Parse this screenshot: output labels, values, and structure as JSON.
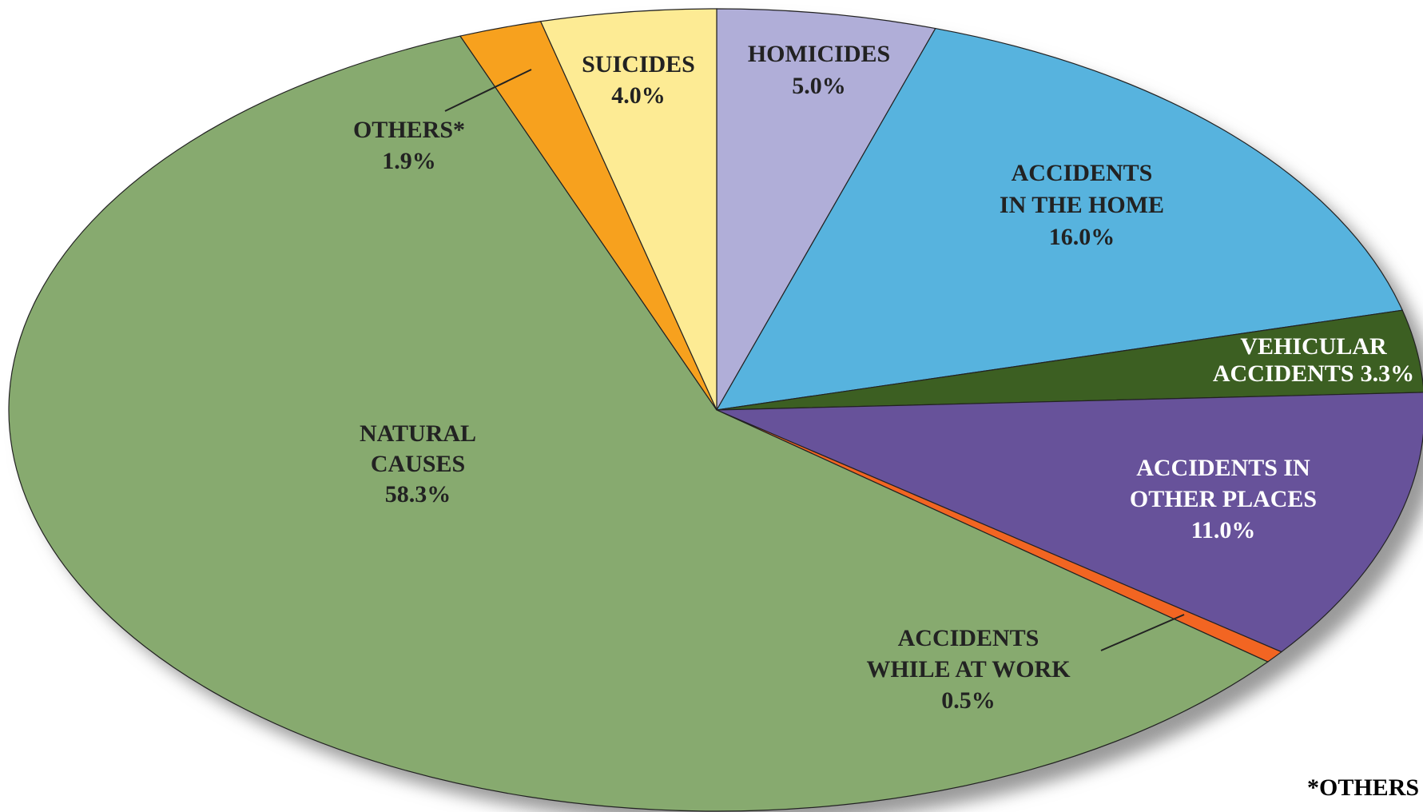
{
  "chart_data": {
    "type": "pie",
    "categories": [
      [
        "HOMICIDES"
      ],
      [
        "ACCIDENTS",
        "IN THE HOME"
      ],
      [
        "VEHICULAR",
        "ACCIDENTS"
      ],
      [
        "ACCIDENTS IN",
        "OTHER PLACES"
      ],
      [
        "ACCIDENTS",
        "WHILE AT WORK"
      ],
      [
        "NATURAL",
        "CAUSES"
      ],
      [
        "OTHERS*"
      ],
      [
        "SUICIDES"
      ]
    ],
    "values": [
      5.0,
      16.0,
      3.3,
      11.0,
      0.5,
      58.3,
      1.9,
      4.0
    ],
    "value_labels": [
      "5.0%",
      "16.0%",
      "3.3%",
      "11.0%",
      "0.5%",
      "58.3%",
      "1.9%",
      "4.0%"
    ],
    "colors": [
      "#b0aed8",
      "#57b3de",
      "#3c5f22",
      "#67529a",
      "#f26522",
      "#87aa6f",
      "#f7a11e",
      "#fdeb94"
    ],
    "footnote": "*OTHERS"
  }
}
